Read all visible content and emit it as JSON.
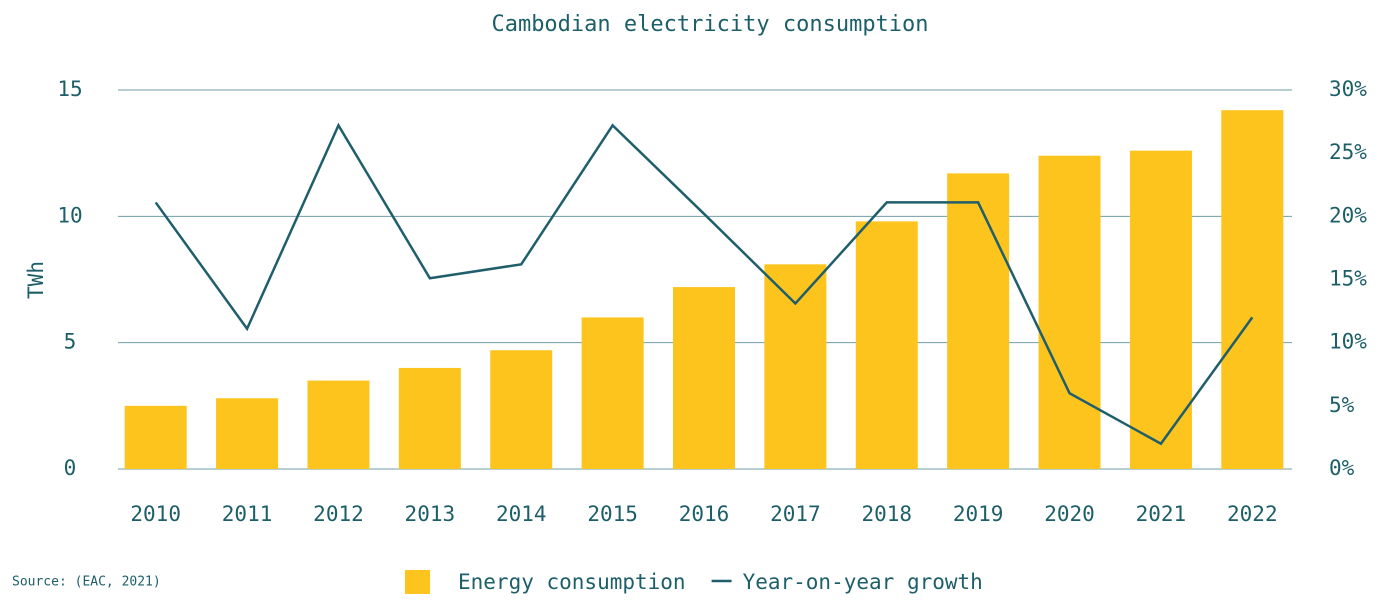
{
  "chart_data": {
    "type": "bar_line",
    "title": "Cambodian electricity consumption",
    "y_label": "TWh",
    "source": "Source: (EAC, 2021)",
    "categories": [
      "2010",
      "2011",
      "2012",
      "2013",
      "2014",
      "2015",
      "2016",
      "2017",
      "2018",
      "2019",
      "2020",
      "2021",
      "2022"
    ],
    "series": [
      {
        "name": "Energy consumption",
        "type": "bar",
        "axis": "y",
        "color": "#fcc41c",
        "values": [
          2.5,
          2.8,
          3.5,
          4.0,
          4.7,
          6.0,
          7.2,
          8.1,
          9.8,
          11.7,
          12.4,
          12.6,
          14.2
        ]
      },
      {
        "name": "Year-on-year growth",
        "type": "line",
        "axis": "y2",
        "color": "#1f5f6b",
        "values": [
          21.1,
          11.1,
          27.2,
          15.1,
          16.2,
          27.2,
          20.2,
          13.1,
          21.1,
          21.1,
          6.0,
          2.0,
          12.0
        ]
      }
    ],
    "ylim": [
      0,
      15
    ],
    "yticks": [
      0,
      5,
      10,
      15
    ],
    "y2lim": [
      0,
      30
    ],
    "y2ticks": [
      {
        "value": 0,
        "label": "0%"
      },
      {
        "value": 5,
        "label": "5%"
      },
      {
        "value": 10,
        "label": "10%"
      },
      {
        "value": 15,
        "label": "15%"
      },
      {
        "value": 20,
        "label": "20%"
      },
      {
        "value": 25,
        "label": "25%"
      },
      {
        "value": 30,
        "label": "30%"
      }
    ],
    "grid": true
  }
}
